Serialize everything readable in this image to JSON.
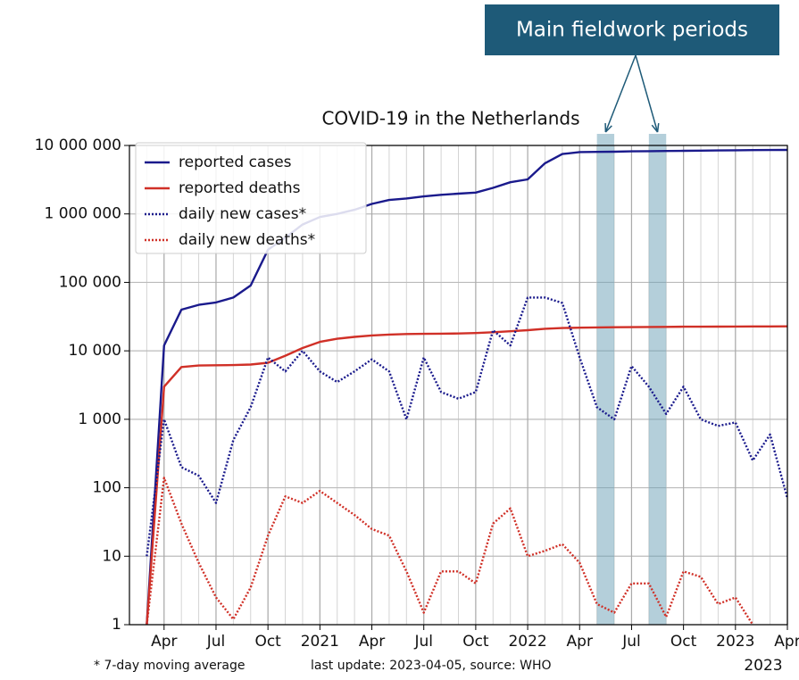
{
  "chart_data": {
    "type": "line",
    "title": "COVID-19 in the Netherlands",
    "annotation": "Main fieldwork periods",
    "highlight_spans": [
      [
        "2022-05",
        "2022-06"
      ],
      [
        "2022-08",
        "2022-09"
      ]
    ],
    "footnote": "* 7-day moving average",
    "source_note": "last update: 2023-04-05, source: WHO",
    "x_axis_year_note": "2023",
    "log_y": true,
    "grid": true,
    "legend": "upper left",
    "xlim": [
      "2020-02",
      "2023-04"
    ],
    "xticks": [
      {
        "value": "2020-04",
        "label": "Apr"
      },
      {
        "value": "2020-07",
        "label": "Jul"
      },
      {
        "value": "2020-10",
        "label": "Oct"
      },
      {
        "value": "2021-01",
        "label": "2021"
      },
      {
        "value": "2021-04",
        "label": "Apr"
      },
      {
        "value": "2021-07",
        "label": "Jul"
      },
      {
        "value": "2021-10",
        "label": "Oct"
      },
      {
        "value": "2022-01",
        "label": "2022"
      },
      {
        "value": "2022-04",
        "label": "Apr"
      },
      {
        "value": "2022-07",
        "label": "Jul"
      },
      {
        "value": "2022-10",
        "label": "Oct"
      },
      {
        "value": "2023-01",
        "label": "2023"
      },
      {
        "value": "2023-04",
        "label": "Apr"
      }
    ],
    "ylim": [
      1,
      10000000
    ],
    "yticks": [
      1,
      10,
      100,
      {
        "value": 1000,
        "label": "1 000"
      },
      {
        "value": 10000,
        "label": "10 000"
      },
      {
        "value": 100000,
        "label": "100 000"
      },
      {
        "value": 1000000,
        "label": "1 000 000"
      },
      {
        "value": 10000000,
        "label": "10 000 000"
      }
    ],
    "x": [
      "2020-03",
      "2020-04",
      "2020-05",
      "2020-06",
      "2020-07",
      "2020-08",
      "2020-09",
      "2020-10",
      "2020-11",
      "2020-12",
      "2021-01",
      "2021-02",
      "2021-03",
      "2021-04",
      "2021-05",
      "2021-06",
      "2021-07",
      "2021-08",
      "2021-09",
      "2021-10",
      "2021-11",
      "2021-12",
      "2022-01",
      "2022-02",
      "2022-03",
      "2022-04",
      "2022-05",
      "2022-06",
      "2022-07",
      "2022-08",
      "2022-09",
      "2022-10",
      "2022-11",
      "2022-12",
      "2023-01",
      "2023-02",
      "2023-03",
      "2023-04"
    ],
    "series": [
      {
        "name": "reported cases",
        "color": "#1a1a8c",
        "style": "solid",
        "values": [
          1,
          12000,
          40000,
          47000,
          51000,
          60000,
          90000,
          300000,
          450000,
          700000,
          900000,
          1000000,
          1150000,
          1400000,
          1600000,
          1680000,
          1800000,
          1900000,
          1980000,
          2050000,
          2400000,
          2900000,
          3200000,
          5500000,
          7500000,
          8000000,
          8050000,
          8100000,
          8200000,
          8250000,
          8300000,
          8350000,
          8400000,
          8450000,
          8500000,
          8550000,
          8580000,
          8600000
        ]
      },
      {
        "name": "reported deaths",
        "color": "#d03027",
        "style": "solid",
        "values": [
          1,
          3000,
          5800,
          6100,
          6150,
          6200,
          6300,
          6700,
          8500,
          11000,
          13500,
          15000,
          16000,
          16800,
          17300,
          17600,
          17700,
          17800,
          17900,
          18200,
          18700,
          19300,
          20000,
          21000,
          21500,
          21800,
          22000,
          22100,
          22200,
          22300,
          22400,
          22500,
          22550,
          22600,
          22650,
          22700,
          22750,
          22800
        ]
      },
      {
        "name": "daily new cases*",
        "color": "#1a1a8c",
        "style": "dotted",
        "values": [
          10,
          1000,
          200,
          150,
          60,
          500,
          1500,
          8000,
          5000,
          10000,
          5000,
          3500,
          5000,
          7500,
          5000,
          1000,
          8000,
          2500,
          2000,
          2500,
          20000,
          12000,
          60000,
          60000,
          50000,
          8000,
          1500,
          1000,
          6000,
          3000,
          1200,
          3000,
          1000,
          800,
          900,
          250,
          600,
          70
        ]
      },
      {
        "name": "daily new deaths*",
        "color": "#d03027",
        "style": "dotted",
        "values": [
          1,
          140,
          30,
          8,
          2.5,
          1.2,
          3.5,
          20,
          75,
          60,
          90,
          60,
          40,
          25,
          20,
          6,
          1.5,
          6,
          6,
          4,
          30,
          50,
          10,
          12,
          15,
          8,
          2,
          1.5,
          4,
          4,
          1.3,
          6,
          5,
          2,
          2.5,
          1,
          null,
          null
        ]
      }
    ]
  }
}
